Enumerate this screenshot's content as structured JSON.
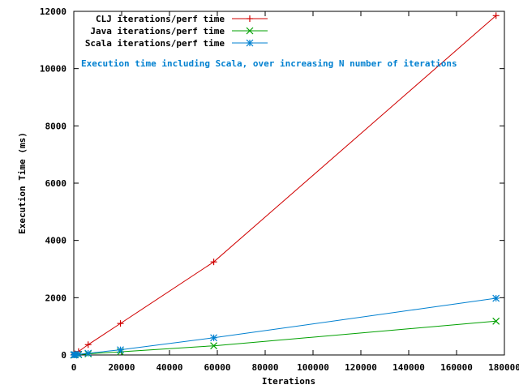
{
  "chart_data": {
    "type": "line",
    "title": "",
    "xlabel": "Iterations",
    "ylabel": "Execution Time (ms)",
    "xlim": [
      0,
      180000
    ],
    "ylim": [
      0,
      12000
    ],
    "x_ticks": [
      0,
      20000,
      40000,
      60000,
      80000,
      100000,
      120000,
      140000,
      160000,
      180000
    ],
    "y_ticks": [
      0,
      2000,
      4000,
      6000,
      8000,
      10000,
      12000
    ],
    "grid": false,
    "legend_position": "top-left",
    "annotation": "Execution time including Scala, over increasing N number of iterations",
    "annotation_color": "#0080d0",
    "series": [
      {
        "name": "CLJ iterations/perf time",
        "color": "#d00000",
        "marker": "plus",
        "x": [
          0,
          100,
          500,
          2000,
          6000,
          19500,
          58500,
          176500
        ],
        "y": [
          0,
          15,
          40,
          120,
          360,
          1100,
          3250,
          11850
        ]
      },
      {
        "name": "Java iterations/perf time",
        "color": "#00a000",
        "marker": "cross",
        "x": [
          0,
          100,
          500,
          2000,
          6000,
          19500,
          58500,
          176500
        ],
        "y": [
          0,
          3,
          5,
          12,
          40,
          110,
          320,
          1180
        ]
      },
      {
        "name": "Scala iterations/perf time",
        "color": "#0080d0",
        "marker": "star",
        "x": [
          0,
          100,
          500,
          2000,
          6000,
          19500,
          58500,
          176500
        ],
        "y": [
          0,
          5,
          10,
          25,
          60,
          180,
          600,
          1980
        ]
      }
    ]
  }
}
